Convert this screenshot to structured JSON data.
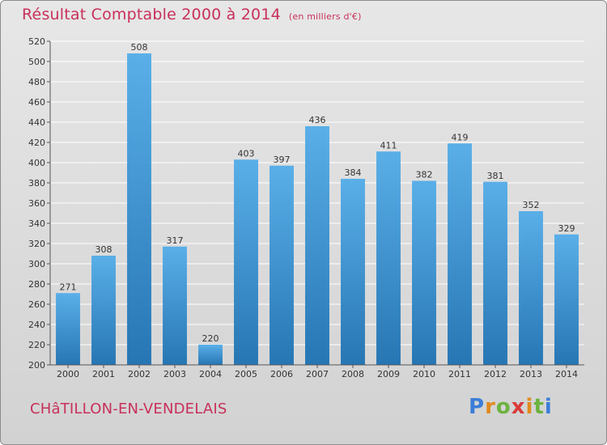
{
  "header": {
    "title": "Résultat Comptable 2000 à 2014",
    "subtitle": "(en milliers d'€)"
  },
  "location": "CHâTILLON-EN-VENDELAIS",
  "logo_text": "Proxiti",
  "colors": {
    "title": "#c8305a",
    "bar_top": "#5aafe8",
    "bar_bottom": "#2676b4"
  },
  "chart_data": {
    "type": "bar",
    "title": "Résultat Comptable 2000 à 2014",
    "subtitle": "(en milliers d'€)",
    "categories": [
      "2000",
      "2001",
      "2002",
      "2003",
      "2004",
      "2005",
      "2006",
      "2007",
      "2008",
      "2009",
      "2010",
      "2011",
      "2012",
      "2013",
      "2014"
    ],
    "values": [
      271,
      308,
      508,
      317,
      220,
      403,
      397,
      436,
      384,
      411,
      382,
      419,
      381,
      352,
      329
    ],
    "ylim": [
      200,
      520
    ],
    "yticks": [
      200,
      220,
      240,
      260,
      280,
      300,
      320,
      340,
      360,
      380,
      400,
      420,
      440,
      460,
      480,
      500,
      520
    ],
    "grid": true,
    "data_labels": true
  }
}
